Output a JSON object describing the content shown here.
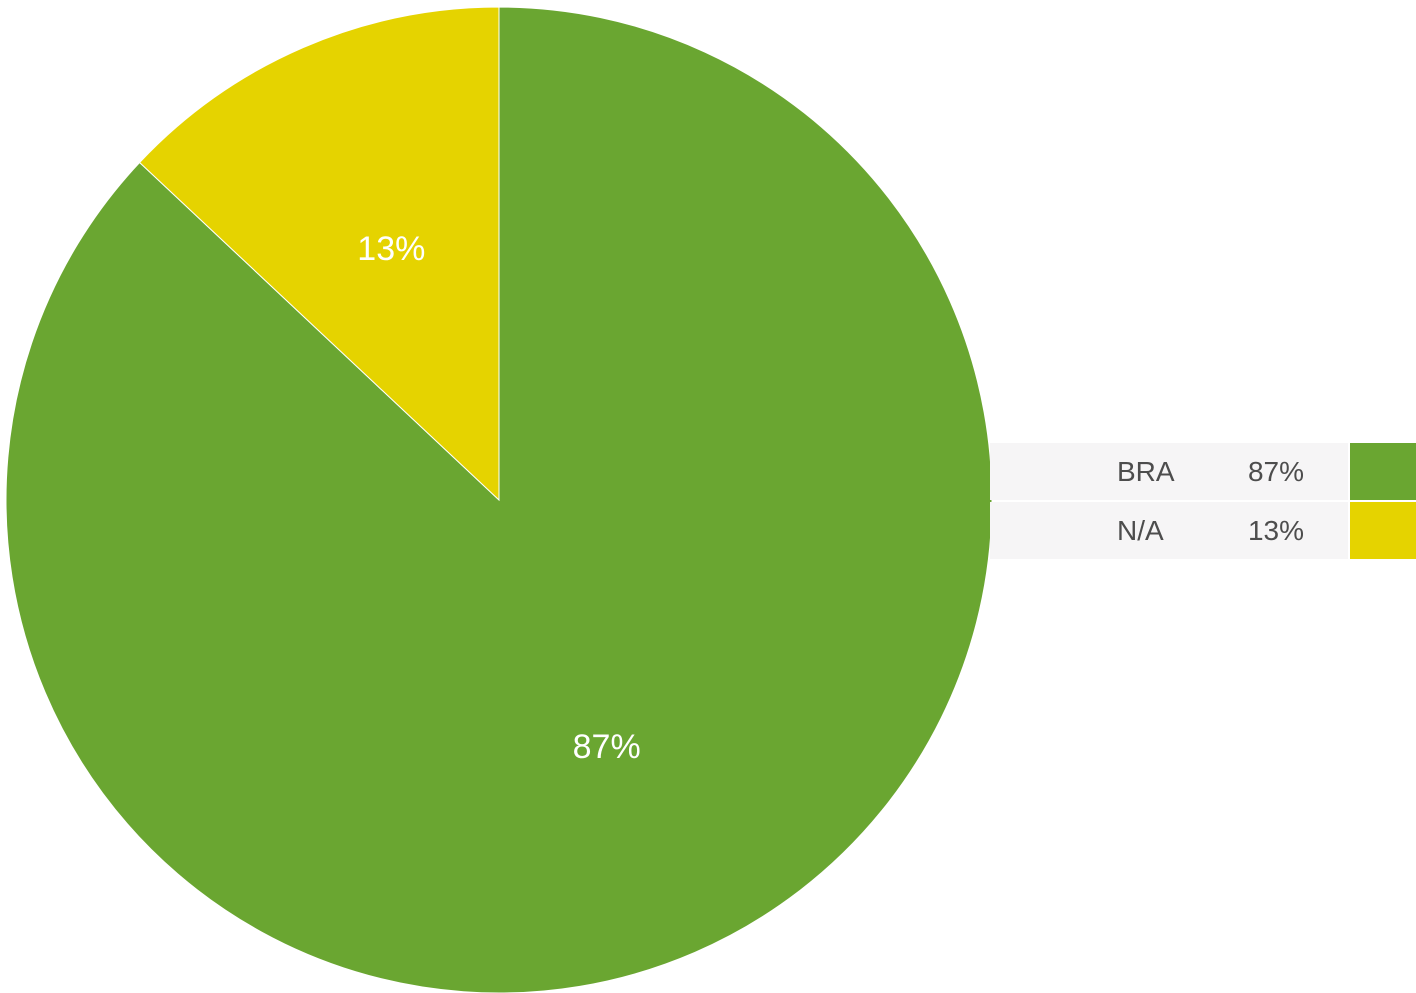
{
  "chart_data": {
    "type": "pie",
    "slices": [
      {
        "name": "BRA",
        "value": 87,
        "label": "87%",
        "legend_value": "87%",
        "color": "#6aa631"
      },
      {
        "name": "N/A",
        "value": 13,
        "label": "13%",
        "legend_value": "13%",
        "color": "#e5d300"
      }
    ],
    "start_angle": "12 o'clock",
    "direction": "clockwise",
    "legend_placement": "right"
  }
}
